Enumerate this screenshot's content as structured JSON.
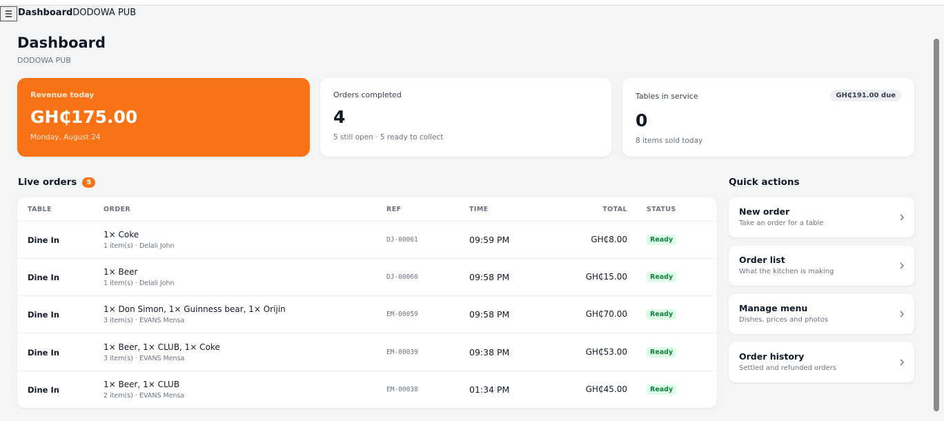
{
  "topbar": {
    "title": "Dashboard",
    "subtitle": "DODOWA PUB"
  },
  "header": {
    "title": "Dashboard",
    "subtitle": "DODOWA PUB"
  },
  "stats": [
    {
      "label": "Revenue today",
      "value": "GH₵175.00",
      "note": "Monday, August 24"
    },
    {
      "label": "Orders completed",
      "value": "4",
      "note": "5 still open · 5 ready to collect"
    },
    {
      "label": "Tables in service",
      "value": "0",
      "note": "8 items sold today",
      "badge": "GH₵191.00 due"
    }
  ],
  "live_orders": {
    "title": "Live orders",
    "count": "5",
    "columns": [
      "TABLE",
      "ORDER",
      "REF",
      "TIME",
      "TOTAL",
      "STATUS"
    ],
    "rows": [
      {
        "table": "Dine In",
        "order": "1× Coke",
        "meta": "1 item(s) · Delali John",
        "ref": "DJ-00061",
        "time": "09:59 PM",
        "total": "GH₵8.00",
        "status": "Ready"
      },
      {
        "table": "Dine In",
        "order": "1× Beer",
        "meta": "1 item(s) · Delali John",
        "ref": "DJ-00060",
        "time": "09:58 PM",
        "total": "GH₵15.00",
        "status": "Ready"
      },
      {
        "table": "Dine In",
        "order": "1× Don Simon, 1× Guinness bear, 1× Orijin",
        "meta": "3 item(s) · EVANS Mensa",
        "ref": "EM-00059",
        "time": "09:58 PM",
        "total": "GH₵70.00",
        "status": "Ready"
      },
      {
        "table": "Dine In",
        "order": "1× Beer, 1× CLUB, 1× Coke",
        "meta": "3 item(s) · EVANS Mensa",
        "ref": "EM-00039",
        "time": "09:38 PM",
        "total": "GH₵53.00",
        "status": "Ready"
      },
      {
        "table": "Dine In",
        "order": "1× Beer, 1× CLUB",
        "meta": "2 item(s) · EVANS Mensa",
        "ref": "EM-00038",
        "time": "01:34 PM",
        "total": "GH₵45.00",
        "status": "Ready"
      }
    ]
  },
  "quick_actions": {
    "title": "Quick actions",
    "items": [
      {
        "title": "New order",
        "subtitle": "Take an order for a table"
      },
      {
        "title": "Order list",
        "subtitle": "What the kitchen is making"
      },
      {
        "title": "Manage menu",
        "subtitle": "Dishes, prices and photos"
      },
      {
        "title": "Order history",
        "subtitle": "Settled and refunded orders"
      }
    ]
  }
}
